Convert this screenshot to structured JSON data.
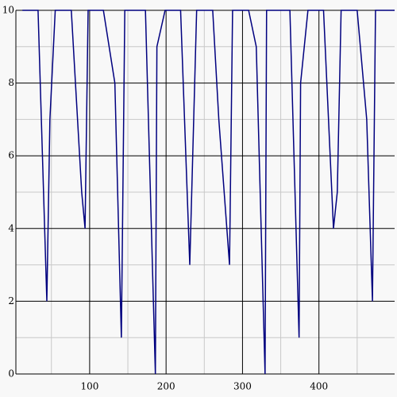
{
  "chart_data": {
    "type": "line",
    "x": [
      12,
      32.5,
      44,
      48,
      55,
      76,
      89.6,
      94,
      98,
      118,
      133,
      141.5,
      146,
      173,
      186,
      188,
      198.7,
      219,
      231,
      240,
      261,
      269,
      283,
      287,
      308,
      318,
      329.5,
      331.5,
      362,
      374,
      376,
      385.6,
      406,
      419,
      424,
      429,
      450,
      462.5,
      470,
      474,
      499
    ],
    "series": [
      {
        "color": "#00007f",
        "values": [
          10,
          10,
          2,
          7,
          10,
          10,
          5,
          4,
          10,
          10,
          8,
          1,
          10,
          10,
          0,
          9,
          10,
          10,
          3,
          10,
          10,
          7,
          3,
          10,
          10,
          9,
          0,
          10,
          10,
          1,
          8,
          10,
          10,
          4,
          5,
          10,
          10,
          7,
          2,
          10,
          10
        ]
      }
    ],
    "xlim": [
      3.5,
      499
    ],
    "xticks": [
      100,
      200,
      300,
      400
    ],
    "x_minor_ticks": [
      50,
      150,
      250,
      350,
      450
    ],
    "ylim": [
      0,
      10
    ],
    "yticks": [
      0,
      2,
      4,
      6,
      8,
      10
    ],
    "y_minor_ticks": [
      1,
      3,
      5,
      7,
      9
    ],
    "grid": true
  }
}
